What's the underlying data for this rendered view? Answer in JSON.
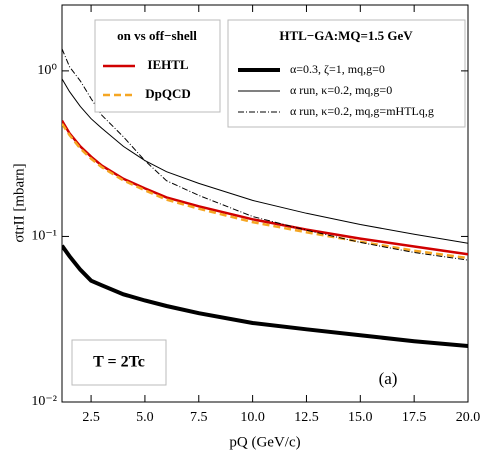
{
  "chart_data": {
    "type": "line",
    "x_label": "pQ (GeV/c)",
    "y_label": "σtrII [mbarn]",
    "log_y": true,
    "xlim": [
      1.15,
      20
    ],
    "ylim": [
      0.01,
      2.5
    ],
    "xticks": [
      2.5,
      {
        "value": 5,
        "label": "5.0"
      },
      7.5,
      {
        "value": 10,
        "label": "10.0"
      },
      12.5,
      {
        "value": 15,
        "label": "15.0"
      },
      17.5,
      {
        "value": 20,
        "label": "20.0"
      }
    ],
    "yticks": [
      {
        "value": 0.01,
        "label": "10⁻²"
      },
      {
        "value": 0.1,
        "label": "10⁻¹"
      },
      {
        "value": 1,
        "label": "10⁰"
      }
    ],
    "legends": [
      {
        "loc": "upper left",
        "title": "on vs off−shell"
      },
      {
        "loc": "upper right",
        "title": "HTL−GA:MQ=1.5 GeV"
      }
    ],
    "annotations": [
      "T = 2Tc",
      "(a)"
    ],
    "x": [
      1.15,
      1.5,
      2,
      2.5,
      3,
      4,
      5,
      6,
      7.5,
      10,
      12.5,
      15,
      17.5,
      20
    ],
    "series": [
      {
        "name": "IEHTL",
        "color": "#d00000",
        "linewidth": 2.5,
        "dash": "solid",
        "legend": "upper left",
        "values": [
          0.5,
          0.42,
          0.35,
          0.303,
          0.268,
          0.223,
          0.195,
          0.172,
          0.152,
          0.127,
          0.11,
          0.097,
          0.087,
          0.078
        ]
      },
      {
        "name": "DpQCD",
        "color": "#f5a623",
        "linewidth": 2.5,
        "dash": "dashed",
        "legend": "upper left",
        "values": [
          0.48,
          0.41,
          0.34,
          0.295,
          0.262,
          0.218,
          0.19,
          0.167,
          0.147,
          0.122,
          0.106,
          0.093,
          0.082,
          0.074
        ]
      },
      {
        "name": "α=0.3, ζ=1, mq,g=0",
        "color": "#000000",
        "linewidth": 4,
        "dash": "solid",
        "legend": "upper right",
        "values": [
          0.088,
          0.076,
          0.063,
          0.054,
          0.0507,
          0.0447,
          0.041,
          0.038,
          0.0344,
          0.03,
          0.0275,
          0.0253,
          0.0233,
          0.0218
        ]
      },
      {
        "name": "α run, κ=0.2, mq,g=0",
        "color": "#000000",
        "linewidth": 1,
        "dash": "solid",
        "legend": "upper right",
        "values": [
          0.895,
          0.75,
          0.61,
          0.514,
          0.45,
          0.35,
          0.287,
          0.246,
          0.209,
          0.165,
          0.138,
          0.118,
          0.103,
          0.091
        ]
      },
      {
        "name": "α run, κ=0.2, mq,g=mHTLq,g",
        "color": "#000000",
        "linewidth": 1,
        "dash": "dashdot",
        "legend": "upper right",
        "values": [
          1.36,
          1.06,
          0.87,
          0.68,
          0.54,
          0.4,
          0.287,
          0.217,
          0.177,
          0.132,
          0.109,
          0.092,
          0.08,
          0.072
        ]
      }
    ]
  }
}
